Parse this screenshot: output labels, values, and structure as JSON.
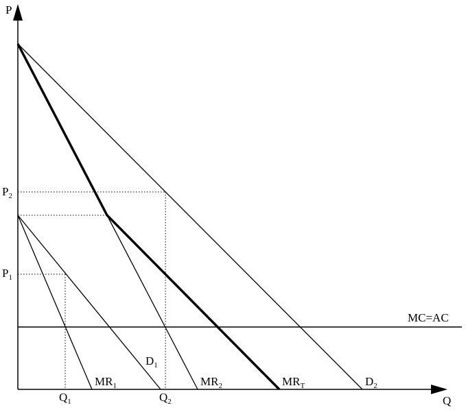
{
  "axes": {
    "y_label": "P",
    "x_label": "Q"
  },
  "price_labels": {
    "p2": {
      "main": "P",
      "sub": "2"
    },
    "p1": {
      "main": "P",
      "sub": "1"
    }
  },
  "quantity_labels": {
    "q1": {
      "main": "Q",
      "sub": "1"
    },
    "q2": {
      "main": "Q",
      "sub": "2"
    }
  },
  "curve_labels": {
    "mr1": {
      "main": "MR",
      "sub": "1"
    },
    "d1": {
      "main": "D",
      "sub": "1"
    },
    "mr2": {
      "main": "MR",
      "sub": "2"
    },
    "mrt": {
      "main": "MR",
      "sub": "T"
    },
    "d2": {
      "main": "D",
      "sub": "2"
    },
    "mc": "MC=AC"
  }
}
